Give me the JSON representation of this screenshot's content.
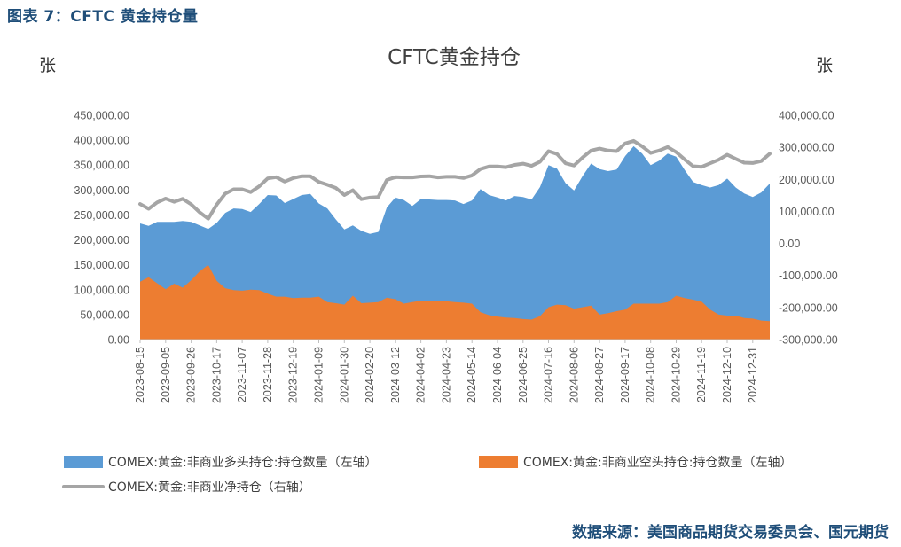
{
  "caption": "图表 7：CFTC 黄金持仓量",
  "source": "数据来源：美国商品期货交易委员会、国元期货",
  "chart_data": {
    "type": "area",
    "title": "CFTC黄金持仓",
    "left_unit": "张",
    "right_unit": "张",
    "ylim_left": [
      0,
      450000
    ],
    "ylim_right": [
      -300000,
      400000
    ],
    "y_ticks_left": [
      "450,000.00",
      "400,000.00",
      "350,000.00",
      "300,000.00",
      "250,000.00",
      "200,000.00",
      "150,000.00",
      "100,000.00",
      "50,000.00",
      "0.00"
    ],
    "y_ticks_right": [
      "400,000.00",
      "300,000.00",
      "200,000.00",
      "100,000.00",
      "0.00",
      "-100,000.00",
      "-200,000.00",
      "-300,000.00"
    ],
    "x_tick_labels": [
      "2023-08-15",
      "2023-09-05",
      "2023-09-26",
      "2023-10-17",
      "2023-11-07",
      "2023-11-28",
      "2023-12-19",
      "2024-01-09",
      "2024-01-30",
      "2024-02-20",
      "2024-03-12",
      "2024-04-02",
      "2024-04-23",
      "2024-05-14",
      "2024-06-04",
      "2024-06-25",
      "2024-07-16",
      "2024-08-06",
      "2024-08-27",
      "2024-09-17",
      "2024-10-08",
      "2024-10-29",
      "2024-11-19",
      "2024-12-10",
      "2024-12-31"
    ],
    "points_per_label": 3,
    "grid": false,
    "legend_position": "bottom",
    "series": [
      {
        "name": "COMEX:黄金:非商业多头持仓:持仓数量（左轴）",
        "axis": "left",
        "kind": "area",
        "color": "#5b9bd5",
        "values": [
          233000,
          228000,
          236000,
          236000,
          236000,
          238000,
          236000,
          229000,
          222000,
          234000,
          254000,
          263000,
          262000,
          256000,
          272000,
          290000,
          289000,
          274000,
          282000,
          290000,
          292000,
          273000,
          263000,
          241000,
          221000,
          229000,
          218000,
          212000,
          216000,
          265000,
          285000,
          280000,
          268000,
          282000,
          281000,
          280000,
          280000,
          279000,
          272000,
          279000,
          302000,
          290000,
          285000,
          279000,
          288000,
          286000,
          281000,
          306000,
          350000,
          343000,
          314000,
          299000,
          328000,
          353000,
          342000,
          338000,
          341000,
          368000,
          388000,
          373000,
          350000,
          359000,
          373000,
          367000,
          340000,
          316000,
          310000,
          305000,
          310000,
          323000,
          305000,
          293000,
          286000,
          295000,
          313000
        ]
      },
      {
        "name": "COMEX:黄金:非商业空头持仓:持仓数量（左轴）",
        "axis": "left",
        "kind": "area",
        "color": "#ed7d31",
        "values": [
          116000,
          125000,
          113000,
          101000,
          112000,
          104000,
          119000,
          137000,
          150000,
          118000,
          103000,
          99000,
          98000,
          100000,
          99000,
          92000,
          86000,
          86000,
          83000,
          84000,
          84000,
          86000,
          75000,
          73000,
          70000,
          88000,
          73000,
          74000,
          75000,
          84000,
          81000,
          72000,
          75000,
          78000,
          78000,
          77000,
          77000,
          75000,
          74000,
          72000,
          55000,
          49000,
          46000,
          44000,
          43000,
          41000,
          40000,
          47000,
          65000,
          70000,
          69000,
          62000,
          65000,
          68000,
          50000,
          53000,
          57000,
          60000,
          72000,
          72000,
          72000,
          72000,
          75000,
          88000,
          83000,
          80000,
          76000,
          60000,
          50000,
          48000,
          48000,
          43000,
          42000,
          38000,
          37000
        ]
      },
      {
        "name": "COMEX:黄金:非商业净持仓（右轴）",
        "axis": "right",
        "kind": "line",
        "color": "#a5a5a5",
        "values": [
          123000,
          108000,
          128000,
          140000,
          130000,
          139000,
          122000,
          97000,
          77000,
          121000,
          155000,
          169000,
          169000,
          160000,
          178000,
          203000,
          207000,
          193000,
          204000,
          210000,
          210000,
          192000,
          183000,
          173000,
          151000,
          166000,
          138000,
          143000,
          145000,
          198000,
          207000,
          206000,
          206000,
          209000,
          210000,
          206000,
          208000,
          208000,
          204000,
          212000,
          232000,
          240000,
          240000,
          238000,
          245000,
          249000,
          242000,
          255000,
          288000,
          279000,
          250000,
          243000,
          268000,
          290000,
          296000,
          290000,
          288000,
          312000,
          320000,
          303000,
          282000,
          290000,
          301000,
          285000,
          262000,
          241000,
          239000,
          250000,
          261000,
          277000,
          264000,
          252000,
          251000,
          257000,
          280000
        ]
      }
    ]
  }
}
